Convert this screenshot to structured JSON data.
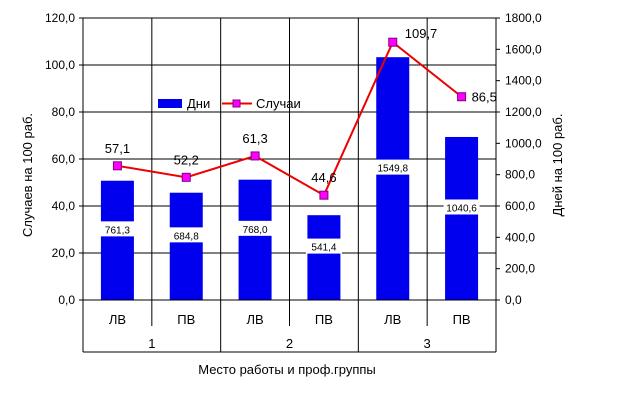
{
  "chart_data": {
    "type": "bar+line",
    "xlabel": "Место работы и проф.группы",
    "ylabel_left": "Случаев на 100 раб.",
    "ylabel_right": "Дней на 100 раб.",
    "ylim_left": [
      0,
      120
    ],
    "ylim_right": [
      0,
      1800
    ],
    "yticks_left": [
      "0,0",
      "20,0",
      "40,0",
      "60,0",
      "80,0",
      "100,0",
      "120,0"
    ],
    "yticks_right": [
      "0,0",
      "200,0",
      "400,0",
      "600,0",
      "800,0",
      "1000,0",
      "1200,0",
      "1400,0",
      "1600,0",
      "1800,0"
    ],
    "categories": [
      "ЛВ",
      "ПВ",
      "ЛВ",
      "ПВ",
      "ЛВ",
      "ПВ"
    ],
    "groups": [
      "1",
      "2",
      "3"
    ],
    "grid": "horizontal and vertical",
    "legend_position": "inside-top-center",
    "series": [
      {
        "name": "Дни",
        "kind": "bar",
        "axis": "right",
        "color": "#0000ee",
        "values": [
          761.3,
          684.8,
          768.0,
          541.4,
          1549.8,
          1040.6
        ],
        "labels": [
          "761,3",
          "684,8",
          "768,0",
          "541,4",
          "1549,8",
          "1040,6"
        ]
      },
      {
        "name": "Случаи",
        "kind": "line",
        "axis": "left",
        "color": "#ee0000",
        "marker_color": "#ff00ff",
        "values": [
          57.1,
          52.2,
          61.3,
          44.6,
          109.7,
          86.5
        ],
        "labels": [
          "57,1",
          "52,2",
          "61,3",
          "44,6",
          "109,7",
          "86,5"
        ]
      }
    ]
  }
}
